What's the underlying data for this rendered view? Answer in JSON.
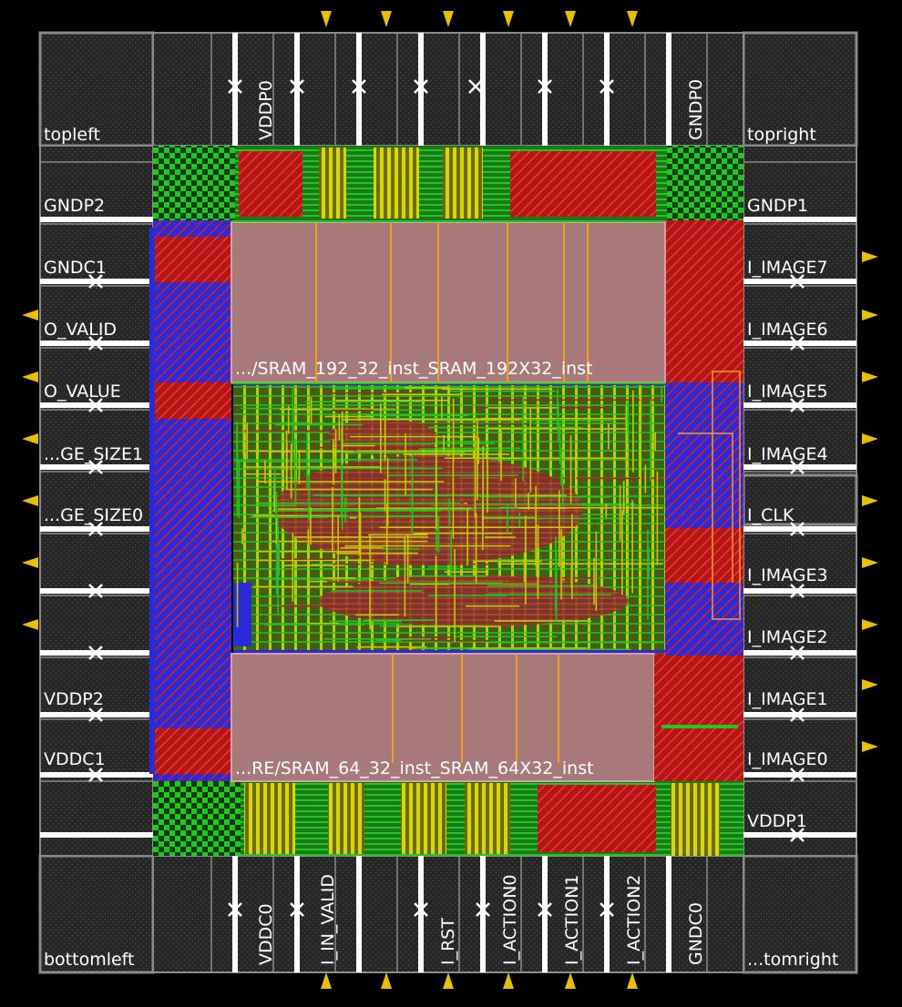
{
  "corners": {
    "topleft": "topleft",
    "topright": "topright",
    "bottomleft": "bottomleft",
    "bottomright": "...tomright"
  },
  "pads": {
    "top": [
      "VDDP0",
      "GNDP0"
    ],
    "bottom": [
      "VDDC0",
      "I_IN_VALID",
      "I_RST",
      "I_ACTION0",
      "I_ACTION1",
      "I_ACTION2",
      "GNDC0"
    ],
    "left": [
      "GNDP2",
      "GNDC1",
      "O_VALID",
      "O_VALUE",
      "...GE_SIZE1",
      "...GE_SIZE0",
      "VDDP2",
      "VDDC1"
    ],
    "right": [
      "GNDP1",
      "I_IMAGE7",
      "I_IMAGE6",
      "I_IMAGE5",
      "I_IMAGE4",
      "I_CLK",
      "I_IMAGE3",
      "I_IMAGE2",
      "I_IMAGE1",
      "I_IMAGE0",
      "VDDP1"
    ]
  },
  "macros": {
    "top_sram": ".../SRAM_192_32_inst_SRAM_192X32_inst",
    "bottom_sram": "...RE/SRAM_64_32_inst_SRAM_64X32_inst"
  },
  "colors": {
    "background": "#000000",
    "pad_fill": "#262626",
    "pad_border": "#8a8a8a",
    "macro": "#a8797a",
    "metal_green": "#22c522",
    "metal_red": "#d81f1f",
    "metal_yellow": "#c8c800",
    "metal_blue": "#2a2ad8",
    "metal_brown": "#9a2a2a",
    "route_orange": "#f0a020",
    "pin_marker": "#e8c000"
  }
}
